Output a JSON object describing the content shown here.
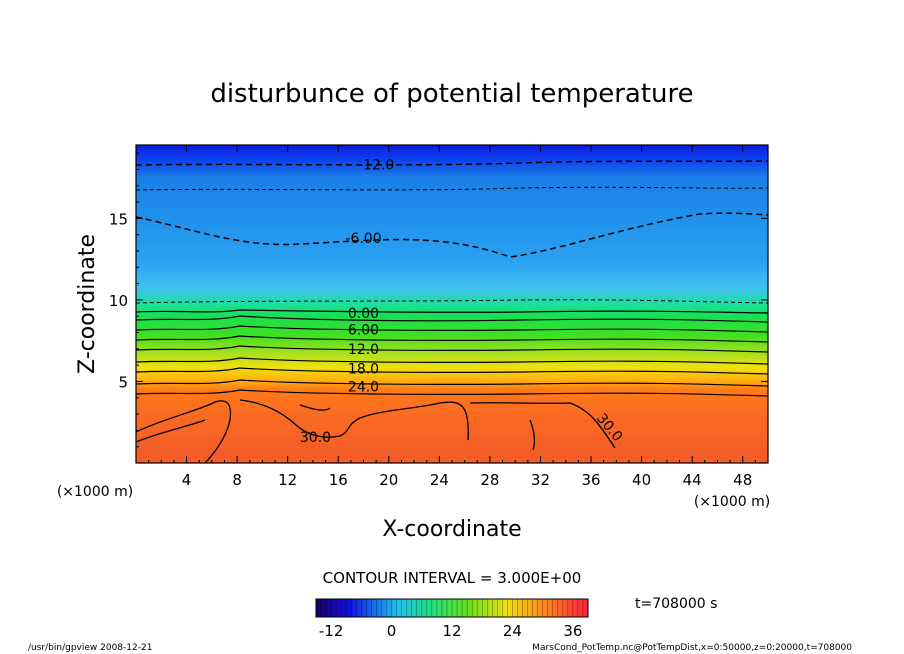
{
  "chart_data": {
    "type": "heatmap",
    "title": "disturbunce of potential temperature",
    "xlabel": "X-coordinate",
    "ylabel": "Z-coordinate",
    "x_unit": "(×1000 m)",
    "y_unit": "(×1000 m)",
    "xlim": [
      0,
      50
    ],
    "ylim": [
      0,
      19.5
    ],
    "xticks": [
      4,
      8,
      12,
      16,
      20,
      24,
      28,
      32,
      36,
      40,
      44,
      48
    ],
    "yticks": [
      5,
      10,
      15
    ],
    "contour_interval_text": "CONTOUR INTERVAL = 3.000E+00",
    "contour_labels": [
      {
        "text": "-12.0",
        "x": 19,
        "y": 18.3
      },
      {
        "text": "-6.00",
        "x": 18,
        "y": 13.8
      },
      {
        "text": "0.00",
        "x": 18,
        "y": 9.2
      },
      {
        "text": "6.00",
        "x": 18,
        "y": 8.2
      },
      {
        "text": "12.0",
        "x": 18,
        "y": 7.0
      },
      {
        "text": "18.0",
        "x": 18,
        "y": 5.8
      },
      {
        "text": "24.0",
        "x": 18,
        "y": 4.7
      },
      {
        "text": "30.0",
        "x": 14.2,
        "y": 1.6
      },
      {
        "text": "30.0",
        "x": 37.5,
        "y": 2.2
      }
    ],
    "colorbar": {
      "min": -15,
      "max": 39,
      "ticks": [
        -12,
        0,
        12,
        24,
        36
      ]
    },
    "time_label": "t=708000 s"
  },
  "footer": {
    "left": "/usr/bin/gpview   2008-12-21",
    "right": "MarsCond_PotTemp.nc@PotTempDist,x=0:50000,z=0:20000,t=708000"
  },
  "colors": {
    "top": "#0a2ee8",
    "upper": "#1e8ce8",
    "mid": "#38a8f0",
    "green": "#22e040",
    "yellow": "#f0e020",
    "orange": "#ff7a18",
    "bottom": "#f2502a"
  }
}
